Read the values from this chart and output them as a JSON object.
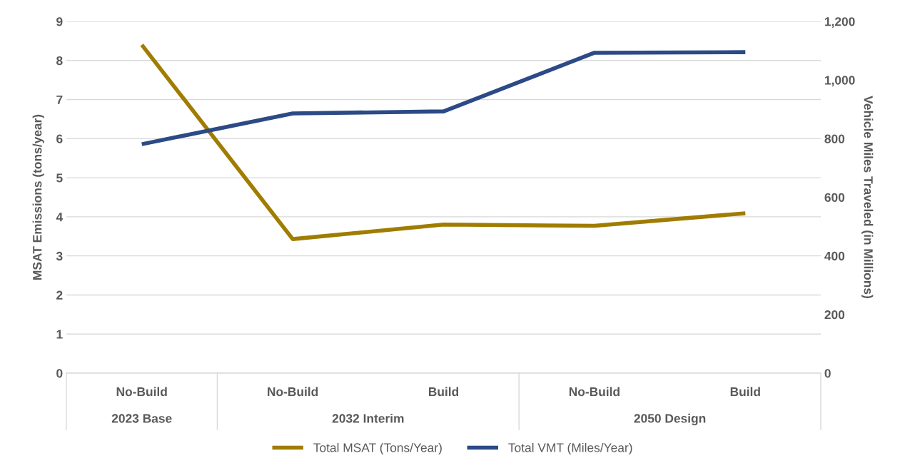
{
  "chart_data": {
    "type": "line",
    "categories": [
      "No-Build",
      "No-Build",
      "Build",
      "No-Build",
      "Build"
    ],
    "annotations": [
      "2023 Base",
      "2032 Interim",
      "2050 Design"
    ],
    "ylabel": "MSAT Emissions (tons/year)",
    "y2label": "Vehicle Miles Traveled (in Millions)",
    "ylim": [
      0,
      9
    ],
    "yticks": [
      0,
      1,
      2,
      3,
      4,
      5,
      6,
      7,
      8,
      9
    ],
    "y2lim": [
      0,
      1200
    ],
    "y2ticks": [
      0,
      {
        "value": 200,
        "label": "200"
      },
      {
        "value": 400,
        "label": "400"
      },
      {
        "value": 600,
        "label": "600"
      },
      {
        "value": 800,
        "label": "800"
      },
      {
        "value": 1000,
        "label": "1,000"
      },
      {
        "value": 1200,
        "label": "1,200"
      }
    ],
    "series": [
      {
        "name": "Total MSAT (Tons/Year)",
        "color": "#a07c00",
        "values": [
          8.4,
          3.43,
          3.8,
          3.77,
          4.09
        ]
      },
      {
        "name": "Total VMT (Miles/Year)",
        "color": "#2b4a86",
        "axis": "y2",
        "values": [
          781,
          886,
          893,
          1093,
          1095
        ]
      }
    ],
    "grid": "y",
    "legend": "bottom",
    "marker": "none",
    "line_style": "solid"
  }
}
